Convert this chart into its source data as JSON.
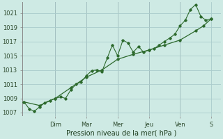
{
  "xlabel": "Pression niveau de la mer( hPa )",
  "bg_color": "#ceeae4",
  "grid_color": "#aacccc",
  "line_color": "#2d6a2d",
  "ylim": [
    1006.5,
    1022.5
  ],
  "yticks": [
    1007,
    1009,
    1011,
    1013,
    1015,
    1017,
    1019,
    1021
  ],
  "day_labels": [
    "Dim",
    "Mar",
    "Mer",
    "Jeu",
    "Ven",
    "S"
  ],
  "day_x_positions": [
    1.0,
    2.0,
    3.0,
    4.0,
    5.0,
    6.0
  ],
  "xlim": [
    -0.05,
    6.3
  ],
  "series1_x": [
    0.0,
    0.17,
    0.33,
    0.5,
    0.67,
    0.83,
    1.0,
    1.17,
    1.33,
    1.5,
    1.67,
    1.83,
    2.0,
    2.17,
    2.33,
    2.5,
    2.67,
    2.83,
    3.0,
    3.17,
    3.33,
    3.5,
    3.67,
    3.83,
    4.0,
    4.17,
    4.33,
    4.5,
    4.67,
    4.83,
    5.0,
    5.17,
    5.33,
    5.5,
    5.67,
    5.83,
    6.0
  ],
  "series1_y": [
    1008.5,
    1007.5,
    1007.2,
    1007.8,
    1008.4,
    1008.7,
    1009.0,
    1009.2,
    1009.0,
    1010.2,
    1011.0,
    1011.3,
    1012.2,
    1012.9,
    1013.0,
    1012.8,
    1014.7,
    1016.5,
    1015.0,
    1017.2,
    1016.8,
    1015.5,
    1016.3,
    1015.5,
    1015.8,
    1016.0,
    1016.5,
    1017.0,
    1017.5,
    1018.0,
    1019.2,
    1020.0,
    1021.5,
    1022.2,
    1020.5,
    1020.0,
    1020.2
  ],
  "series2_x": [
    0.0,
    0.5,
    1.0,
    1.5,
    2.0,
    2.5,
    3.0,
    3.5,
    4.0,
    4.5,
    5.0,
    5.5,
    5.75,
    6.0
  ],
  "series2_y": [
    1008.5,
    1008.0,
    1009.0,
    1010.5,
    1012.0,
    1013.0,
    1014.5,
    1015.2,
    1015.8,
    1016.5,
    1017.2,
    1018.5,
    1019.2,
    1020.2
  ],
  "xlabel_fontsize": 7,
  "tick_fontsize": 6
}
